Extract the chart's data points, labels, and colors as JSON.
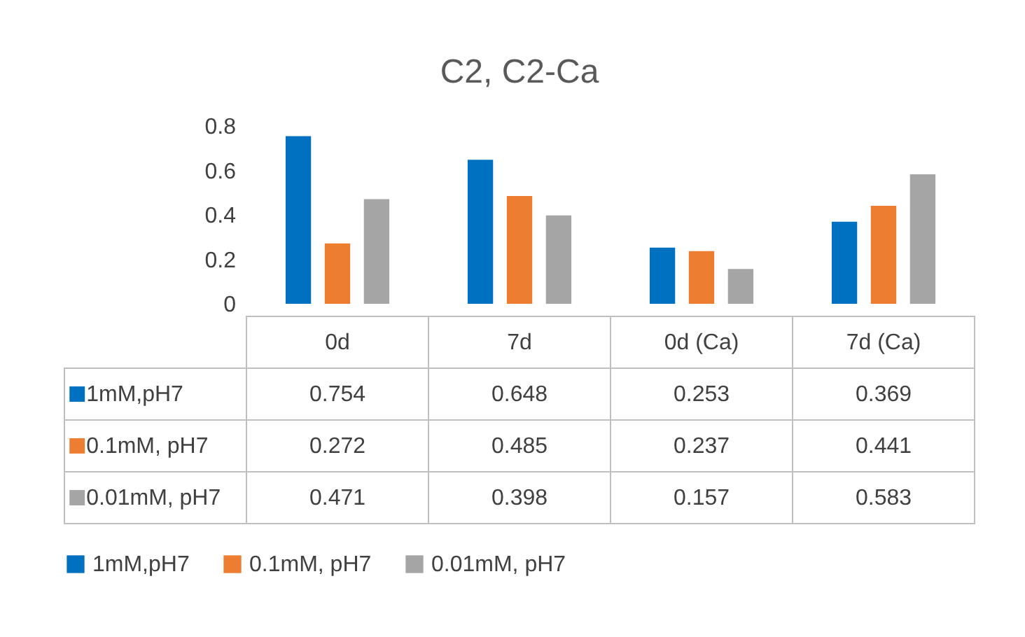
{
  "chart_data": {
    "type": "bar",
    "title": "C2, C2-Ca",
    "categories": [
      "0d",
      "7d",
      "0d (Ca)",
      "7d (Ca)"
    ],
    "series": [
      {
        "name": "1mM,pH7",
        "color": "#0070c0",
        "values": [
          0.754,
          0.648,
          0.253,
          0.369
        ]
      },
      {
        "name": "0.1mM, pH7",
        "color": "#ed7d31",
        "values": [
          0.272,
          0.485,
          0.237,
          0.441
        ]
      },
      {
        "name": "0.01mM, pH7",
        "color": "#a5a5a5",
        "values": [
          0.471,
          0.398,
          0.157,
          0.583
        ]
      }
    ],
    "ylim": [
      0,
      0.8
    ],
    "yticks": [
      0,
      0.2,
      0.4,
      0.6,
      0.8
    ],
    "grid": false,
    "legend": "bottom",
    "data_labels": true
  }
}
